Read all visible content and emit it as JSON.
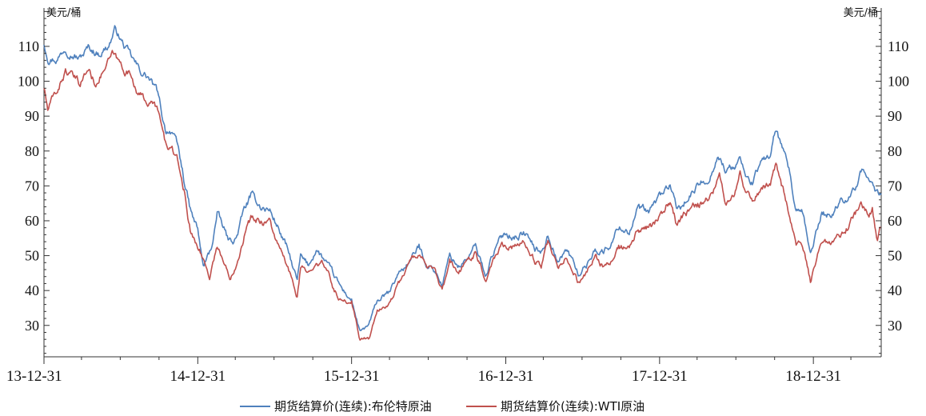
{
  "chart_data": {
    "type": "line",
    "title": "",
    "y_unit_left": "美元/桶",
    "y_unit_right": "美元/桶",
    "ylim": [
      21,
      121
    ],
    "y_ticks": [
      30,
      40,
      50,
      60,
      70,
      80,
      90,
      100,
      110
    ],
    "x_range": [
      "2013-12-31",
      "2019-06-10"
    ],
    "x_ticks": [
      {
        "date": "2013-12-31",
        "label": "13-12-31"
      },
      {
        "date": "2014-12-31",
        "label": "14-12-31"
      },
      {
        "date": "2015-12-31",
        "label": "15-12-31"
      },
      {
        "date": "2016-12-31",
        "label": "16-12-31"
      },
      {
        "date": "2017-12-31",
        "label": "17-12-31"
      },
      {
        "date": "2018-12-31",
        "label": "18-12-31"
      }
    ],
    "legend_position": "bottom",
    "series": [
      {
        "name": "期货结算价(连续):布伦特原油",
        "color": "#4f81bd",
        "points": [
          [
            "2013-12-31",
            110.8
          ],
          [
            "2014-01-10",
            107.0
          ],
          [
            "2014-02-01",
            106.5
          ],
          [
            "2014-02-20",
            110.0
          ],
          [
            "2014-03-10",
            108.0
          ],
          [
            "2014-03-25",
            106.5
          ],
          [
            "2014-04-15",
            109.5
          ],
          [
            "2014-05-10",
            108.0
          ],
          [
            "2014-06-01",
            110.0
          ],
          [
            "2014-06-19",
            115.0
          ],
          [
            "2014-07-05",
            111.0
          ],
          [
            "2014-07-25",
            107.0
          ],
          [
            "2014-08-15",
            103.0
          ],
          [
            "2014-09-05",
            101.0
          ],
          [
            "2014-09-25",
            97.0
          ],
          [
            "2014-10-15",
            86.0
          ],
          [
            "2014-10-31",
            86.0
          ],
          [
            "2014-11-15",
            80.0
          ],
          [
            "2014-11-28",
            72.0
          ],
          [
            "2014-12-15",
            62.0
          ],
          [
            "2014-12-31",
            57.3
          ],
          [
            "2015-01-13",
            46.6
          ],
          [
            "2015-02-01",
            52.0
          ],
          [
            "2015-02-15",
            62.0
          ],
          [
            "2015-03-15",
            54.0
          ],
          [
            "2015-04-01",
            55.0
          ],
          [
            "2015-04-20",
            63.0
          ],
          [
            "2015-05-06",
            67.0
          ],
          [
            "2015-06-01",
            64.0
          ],
          [
            "2015-06-20",
            63.0
          ],
          [
            "2015-07-10",
            58.0
          ],
          [
            "2015-07-31",
            52.0
          ],
          [
            "2015-08-24",
            42.7
          ],
          [
            "2015-09-01",
            49.5
          ],
          [
            "2015-09-20",
            47.0
          ],
          [
            "2015-10-08",
            52.0
          ],
          [
            "2015-10-31",
            48.0
          ],
          [
            "2015-11-20",
            44.0
          ],
          [
            "2015-12-10",
            40.0
          ],
          [
            "2015-12-31",
            37.3
          ],
          [
            "2016-01-20",
            27.9
          ],
          [
            "2016-02-10",
            30.0
          ],
          [
            "2016-03-01",
            37.0
          ],
          [
            "2016-04-01",
            39.5
          ],
          [
            "2016-04-20",
            45.0
          ],
          [
            "2016-05-15",
            48.0
          ],
          [
            "2016-06-08",
            52.5
          ],
          [
            "2016-06-25",
            48.0
          ],
          [
            "2016-07-15",
            46.0
          ],
          [
            "2016-08-02",
            41.5
          ],
          [
            "2016-08-20",
            50.0
          ],
          [
            "2016-09-10",
            47.0
          ],
          [
            "2016-09-30",
            49.0
          ],
          [
            "2016-10-20",
            52.5
          ],
          [
            "2016-11-14",
            44.4
          ],
          [
            "2016-11-30",
            50.5
          ],
          [
            "2016-12-20",
            55.0
          ],
          [
            "2016-12-31",
            56.8
          ],
          [
            "2017-01-20",
            55.5
          ],
          [
            "2017-02-15",
            56.5
          ],
          [
            "2017-03-10",
            52.0
          ],
          [
            "2017-03-25",
            51.0
          ],
          [
            "2017-04-10",
            56.0
          ],
          [
            "2017-05-05",
            48.0
          ],
          [
            "2017-05-25",
            52.0
          ],
          [
            "2017-06-21",
            44.8
          ],
          [
            "2017-07-10",
            47.0
          ],
          [
            "2017-07-31",
            52.0
          ],
          [
            "2017-08-20",
            51.0
          ],
          [
            "2017-09-10",
            54.0
          ],
          [
            "2017-09-25",
            58.5
          ],
          [
            "2017-10-20",
            57.0
          ],
          [
            "2017-11-10",
            63.5
          ],
          [
            "2017-12-05",
            62.0
          ],
          [
            "2017-12-31",
            66.9
          ],
          [
            "2018-01-25",
            70.5
          ],
          [
            "2018-02-09",
            62.5
          ],
          [
            "2018-02-28",
            65.0
          ],
          [
            "2018-03-20",
            68.0
          ],
          [
            "2018-04-10",
            71.0
          ],
          [
            "2018-05-01",
            73.0
          ],
          [
            "2018-05-17",
            79.5
          ],
          [
            "2018-06-05",
            74.5
          ],
          [
            "2018-06-25",
            75.0
          ],
          [
            "2018-07-10",
            78.0
          ],
          [
            "2018-07-25",
            72.0
          ],
          [
            "2018-08-10",
            71.0
          ],
          [
            "2018-08-30",
            77.0
          ],
          [
            "2018-09-20",
            79.0
          ],
          [
            "2018-10-03",
            86.3
          ],
          [
            "2018-10-20",
            79.5
          ],
          [
            "2018-11-05",
            73.0
          ],
          [
            "2018-11-20",
            62.0
          ],
          [
            "2018-12-05",
            61.5
          ],
          [
            "2018-12-24",
            50.5
          ],
          [
            "2018-12-31",
            53.8
          ],
          [
            "2019-01-20",
            62.0
          ],
          [
            "2019-02-10",
            61.5
          ],
          [
            "2019-03-01",
            65.0
          ],
          [
            "2019-03-25",
            67.5
          ],
          [
            "2019-04-15",
            71.0
          ],
          [
            "2019-04-25",
            74.5
          ],
          [
            "2019-05-10",
            70.0
          ],
          [
            "2019-05-20",
            72.5
          ],
          [
            "2019-06-01",
            68.0
          ],
          [
            "2019-06-10",
            67.5
          ]
        ]
      },
      {
        "name": "期货结算价(连续):WTI原油",
        "color": "#c0504d",
        "points": [
          [
            "2013-12-31",
            98.4
          ],
          [
            "2014-01-09",
            91.7
          ],
          [
            "2014-02-01",
            97.5
          ],
          [
            "2014-02-20",
            103.0
          ],
          [
            "2014-03-10",
            101.0
          ],
          [
            "2014-03-25",
            99.0
          ],
          [
            "2014-04-15",
            103.5
          ],
          [
            "2014-05-01",
            99.5
          ],
          [
            "2014-05-20",
            103.0
          ],
          [
            "2014-06-13",
            107.5
          ],
          [
            "2014-07-05",
            104.0
          ],
          [
            "2014-07-25",
            102.0
          ],
          [
            "2014-08-15",
            96.0
          ],
          [
            "2014-09-05",
            94.0
          ],
          [
            "2014-09-25",
            92.5
          ],
          [
            "2014-10-15",
            82.0
          ],
          [
            "2014-10-31",
            80.5
          ],
          [
            "2014-11-15",
            76.0
          ],
          [
            "2014-11-28",
            69.0
          ],
          [
            "2014-12-15",
            56.0
          ],
          [
            "2014-12-31",
            53.3
          ],
          [
            "2015-01-28",
            44.1
          ],
          [
            "2015-02-15",
            53.0
          ],
          [
            "2015-03-17",
            43.5
          ],
          [
            "2015-04-01",
            48.0
          ],
          [
            "2015-04-20",
            56.0
          ],
          [
            "2015-05-06",
            60.5
          ],
          [
            "2015-06-01",
            60.0
          ],
          [
            "2015-06-20",
            60.0
          ],
          [
            "2015-07-10",
            52.5
          ],
          [
            "2015-07-31",
            47.0
          ],
          [
            "2015-08-24",
            38.2
          ],
          [
            "2015-09-01",
            46.0
          ],
          [
            "2015-09-20",
            45.0
          ],
          [
            "2015-10-08",
            49.5
          ],
          [
            "2015-10-31",
            46.5
          ],
          [
            "2015-11-20",
            40.0
          ],
          [
            "2015-12-10",
            36.5
          ],
          [
            "2015-12-31",
            37.0
          ],
          [
            "2016-01-20",
            26.2
          ],
          [
            "2016-02-11",
            26.2
          ],
          [
            "2016-03-01",
            34.0
          ],
          [
            "2016-04-01",
            36.5
          ],
          [
            "2016-04-20",
            42.0
          ],
          [
            "2016-05-15",
            47.5
          ],
          [
            "2016-06-08",
            51.2
          ],
          [
            "2016-06-25",
            47.5
          ],
          [
            "2016-07-15",
            45.0
          ],
          [
            "2016-08-02",
            39.5
          ],
          [
            "2016-08-20",
            48.0
          ],
          [
            "2016-09-10",
            45.0
          ],
          [
            "2016-09-30",
            48.0
          ],
          [
            "2016-10-20",
            51.5
          ],
          [
            "2016-11-14",
            43.3
          ],
          [
            "2016-11-30",
            49.0
          ],
          [
            "2016-12-20",
            53.0
          ],
          [
            "2016-12-31",
            53.7
          ],
          [
            "2017-01-20",
            52.5
          ],
          [
            "2017-02-15",
            53.5
          ],
          [
            "2017-03-10",
            48.5
          ],
          [
            "2017-03-25",
            47.5
          ],
          [
            "2017-04-10",
            53.0
          ],
          [
            "2017-05-05",
            45.5
          ],
          [
            "2017-05-25",
            49.5
          ],
          [
            "2017-06-21",
            42.5
          ],
          [
            "2017-07-10",
            44.5
          ],
          [
            "2017-07-31",
            50.0
          ],
          [
            "2017-08-20",
            47.0
          ],
          [
            "2017-09-10",
            48.0
          ],
          [
            "2017-09-25",
            52.0
          ],
          [
            "2017-10-20",
            51.5
          ],
          [
            "2017-11-10",
            57.0
          ],
          [
            "2017-12-05",
            57.5
          ],
          [
            "2017-12-31",
            60.4
          ],
          [
            "2018-01-25",
            66.0
          ],
          [
            "2018-02-09",
            59.0
          ],
          [
            "2018-02-28",
            61.5
          ],
          [
            "2018-03-20",
            63.5
          ],
          [
            "2018-04-10",
            65.5
          ],
          [
            "2018-05-01",
            67.5
          ],
          [
            "2018-05-22",
            72.2
          ],
          [
            "2018-06-05",
            65.0
          ],
          [
            "2018-06-25",
            68.5
          ],
          [
            "2018-07-10",
            73.5
          ],
          [
            "2018-07-25",
            68.5
          ],
          [
            "2018-08-10",
            66.5
          ],
          [
            "2018-08-30",
            70.0
          ],
          [
            "2018-09-20",
            70.5
          ],
          [
            "2018-10-03",
            76.4
          ],
          [
            "2018-10-20",
            69.0
          ],
          [
            "2018-11-05",
            62.5
          ],
          [
            "2018-11-20",
            53.0
          ],
          [
            "2018-12-05",
            52.5
          ],
          [
            "2018-12-24",
            42.5
          ],
          [
            "2018-12-31",
            45.4
          ],
          [
            "2019-01-20",
            53.5
          ],
          [
            "2019-02-10",
            52.5
          ],
          [
            "2019-03-01",
            56.0
          ],
          [
            "2019-03-25",
            58.5
          ],
          [
            "2019-04-15",
            63.0
          ],
          [
            "2019-04-23",
            66.3
          ],
          [
            "2019-05-10",
            61.5
          ],
          [
            "2019-05-20",
            63.0
          ],
          [
            "2019-06-01",
            54.0
          ],
          [
            "2019-06-10",
            58.0
          ]
        ]
      }
    ]
  }
}
